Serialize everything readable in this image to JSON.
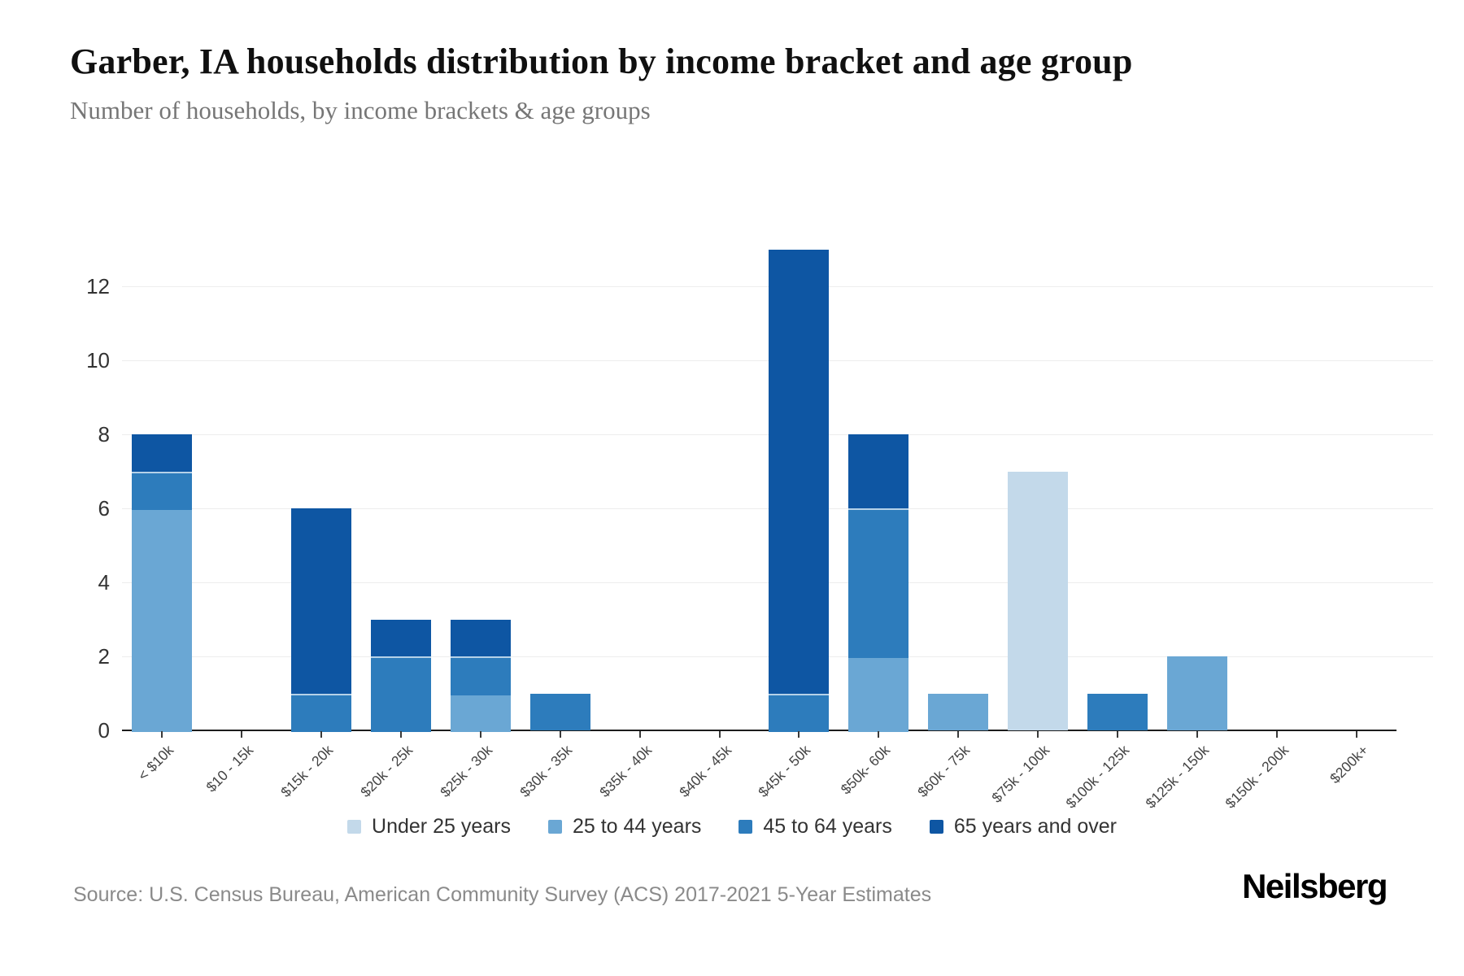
{
  "title": "Garber, IA households distribution by income bracket and age group",
  "subtitle": "Number of households, by income brackets & age groups",
  "chart_data": {
    "type": "bar",
    "stacked": true,
    "title": "Garber, IA households distribution by income bracket and age group",
    "xlabel": "",
    "ylabel": "",
    "grid": true,
    "legend_position": "bottom",
    "ylim": [
      0,
      13
    ],
    "yticks": [
      0,
      2,
      4,
      6,
      8,
      10,
      12
    ],
    "categories": [
      "< $10k",
      "$10 - 15k",
      "$15k - 20k",
      "$20k - 25k",
      "$25k - 30k",
      "$30k - 35k",
      "$35k - 40k",
      "$40k - 45k",
      "$45k - 50k",
      "$50k- 60k",
      "$60k - 75k",
      "$75k - 100k",
      "$100k - 125k",
      "$125k - 150k",
      "$150k - 200k",
      "$200k+"
    ],
    "series": [
      {
        "name": "Under 25 years",
        "color": "#c3d9ea",
        "values": [
          0,
          0,
          0,
          0,
          0,
          0,
          0,
          0,
          0,
          0,
          0,
          7,
          0,
          0,
          0,
          0
        ]
      },
      {
        "name": "25 to 44 years",
        "color": "#6aa7d4",
        "values": [
          6,
          0,
          0,
          0,
          1,
          0,
          0,
          0,
          0,
          2,
          1,
          0,
          0,
          2,
          0,
          0
        ]
      },
      {
        "name": "45 to 64 years",
        "color": "#2d7cbc",
        "values": [
          1,
          0,
          1,
          2,
          1,
          1,
          0,
          0,
          1,
          4,
          0,
          0,
          1,
          0,
          0,
          0
        ]
      },
      {
        "name": "65 years and over",
        "color": "#0e56a3",
        "values": [
          1,
          0,
          5,
          1,
          1,
          0,
          0,
          0,
          12,
          2,
          0,
          0,
          0,
          0,
          0,
          0
        ]
      }
    ],
    "totals": [
      8,
      0,
      6,
      3,
      3,
      1,
      0,
      0,
      13,
      8,
      1,
      7,
      1,
      2,
      0,
      0
    ]
  },
  "footer": {
    "source": "Source: U.S. Census Bureau, American Community Survey (ACS) 2017-2021 5-Year Estimates",
    "brand": "Neilsberg"
  }
}
